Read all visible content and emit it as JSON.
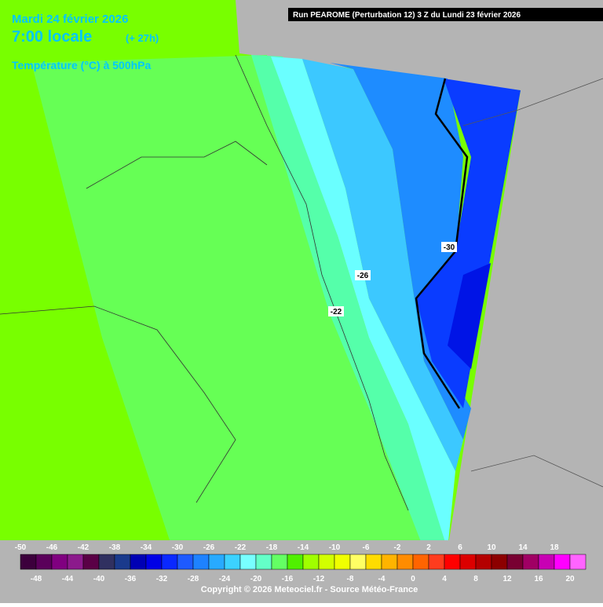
{
  "header": {
    "date": "Mardi 24 février 2026",
    "time": "7:00 locale",
    "lead": "(+ 27h)",
    "field": "Température (°C) à 500hPa",
    "run": "Run PEAROME (Perturbation 12) 3 Z du Lundi 23 février 2026"
  },
  "contours": [
    {
      "label": "-30"
    },
    {
      "label": "-26"
    },
    {
      "label": "-22"
    }
  ],
  "scale": {
    "colors": [
      "#3c003c",
      "#5a005a",
      "#800080",
      "#8c1a8c",
      "#5a0046",
      "#303060",
      "#1a3a8c",
      "#0000b4",
      "#0000e6",
      "#0a28ff",
      "#1e5aff",
      "#1e82ff",
      "#28aaff",
      "#3cd2ff",
      "#78ffff",
      "#64ffc8",
      "#64ff64",
      "#50f000",
      "#a0ff00",
      "#d2ff00",
      "#f0ff00",
      "#ffff64",
      "#ffdc00",
      "#ffb400",
      "#ff8c00",
      "#ff6400",
      "#ff3c1e",
      "#ff0000",
      "#dc0000",
      "#b40000",
      "#8c0000",
      "#780032",
      "#a00064",
      "#c800b4",
      "#ff00ff",
      "#ff64ff"
    ],
    "top_labels": [
      "-50",
      "-46",
      "-42",
      "-38",
      "-34",
      "-30",
      "-26",
      "-22",
      "-18",
      "-14",
      "-10",
      "-6",
      "-2",
      "2",
      "6",
      "10",
      "14",
      "18"
    ],
    "bottom_labels": [
      "-48",
      "-44",
      "-40",
      "-36",
      "-32",
      "-28",
      "-24",
      "-20",
      "-16",
      "-12",
      "-8",
      "-4",
      "0",
      "4",
      "8",
      "12",
      "16",
      "20"
    ]
  },
  "footer": {
    "copyright": "Copyright © 2026 Meteociel.fr - Source Météo-France"
  }
}
